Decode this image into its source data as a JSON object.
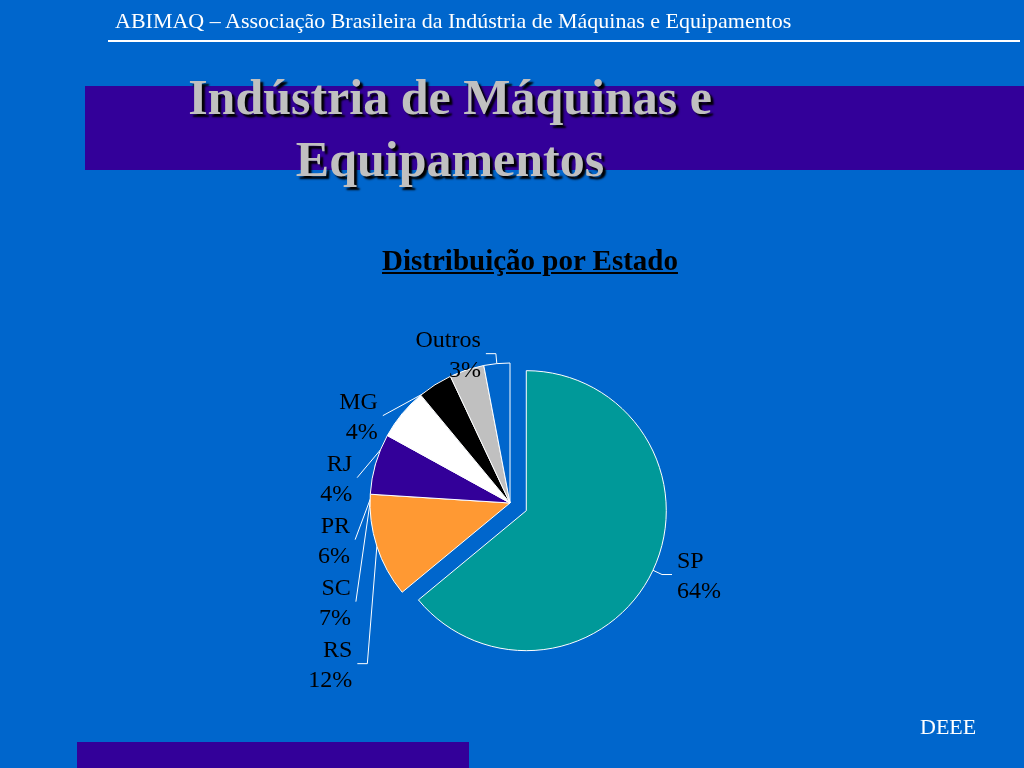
{
  "chart_data": {
    "type": "pie",
    "title": "Indústria de Máquinas e Equipamentos",
    "subtitle": "Distribuição por Estado",
    "annotations": [
      "ABIMAQ – Associação Brasileira da Indústria de Máquinas e Equipamentos",
      "DEEE"
    ],
    "categories": [
      "SP",
      "RS",
      "SC",
      "PR",
      "RJ",
      "MG",
      "Outros"
    ],
    "values": [
      64,
      12,
      7,
      6,
      4,
      4,
      3
    ],
    "value_labels": [
      "64%",
      "12%",
      "7%",
      "6%",
      "4%",
      "4%",
      "3%"
    ],
    "colors": [
      "#009999",
      "#ff9933",
      "#330099",
      "#ffffff",
      "#000000",
      "#c0c0c0",
      "#0066cc"
    ],
    "legend": false
  }
}
